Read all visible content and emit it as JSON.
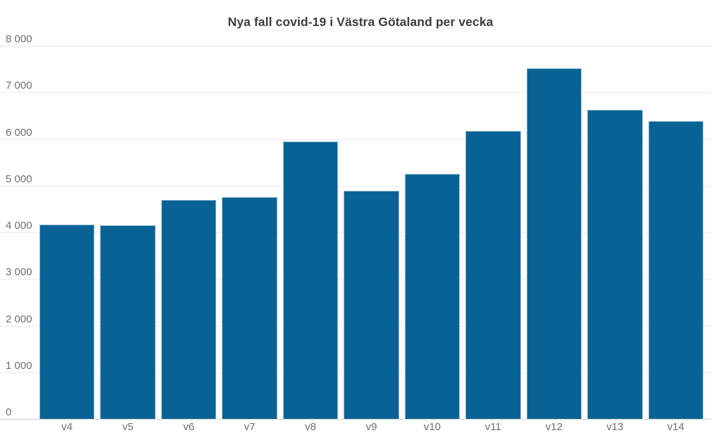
{
  "chart_data": {
    "type": "bar",
    "title": "Nya fall covid-19 i Västra Götaland per vecka",
    "categories": [
      "v4",
      "v5",
      "v6",
      "v7",
      "v8",
      "v9",
      "v10",
      "v11",
      "v12",
      "v13",
      "v14"
    ],
    "values": [
      4160,
      4150,
      4700,
      4760,
      5940,
      4890,
      5250,
      6170,
      7510,
      6630,
      6380
    ],
    "xlabel": "",
    "ylabel": "",
    "ylim": [
      0,
      8000
    ],
    "y_ticks": [
      0,
      1000,
      2000,
      3000,
      4000,
      5000,
      6000,
      7000,
      8000
    ],
    "y_tick_labels": [
      "0",
      "1 000",
      "2 000",
      "3 000",
      "4 000",
      "5 000",
      "6 000",
      "7 000",
      "8 000"
    ],
    "grid": "horizontal",
    "legend": "none",
    "colors": {
      "bar_fill": "#086394",
      "bar_edge": "#8fb9d4",
      "gridline": "#e9e9e9",
      "baseline": "#d2d2d2",
      "title_text": "#3d3d3d",
      "axis_text": "#6e6e6e",
      "background": "#ffffff"
    }
  }
}
